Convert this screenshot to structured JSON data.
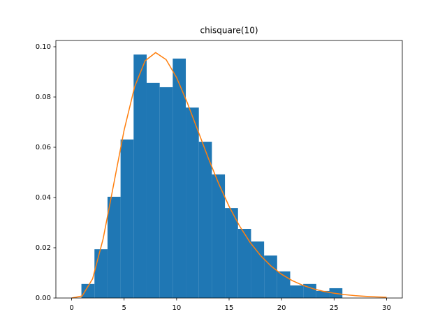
{
  "chart_data": {
    "type": "histogram",
    "title": "chisquare(10)",
    "bins": [
      0.933,
      2.176,
      3.419,
      4.662,
      5.905,
      7.148,
      8.391,
      9.634,
      10.877,
      12.12,
      13.363,
      14.606,
      15.849,
      17.092,
      18.335,
      19.578,
      20.821,
      22.064,
      23.307,
      24.55,
      25.793
    ],
    "values": [
      0.0056,
      0.0194,
      0.0403,
      0.0631,
      0.0969,
      0.0856,
      0.0839,
      0.0953,
      0.0758,
      0.0622,
      0.0492,
      0.0358,
      0.0275,
      0.0225,
      0.0169,
      0.0106,
      0.005,
      0.0056,
      0.0028,
      0.0039
    ],
    "color": "#1f77b4",
    "line": {
      "type": "line",
      "color": "#ff7f0e",
      "x": [
        0,
        1,
        2,
        3,
        4,
        5,
        6,
        7,
        8,
        9,
        10,
        11,
        12,
        13,
        14,
        15,
        16,
        17,
        18,
        19,
        20,
        21,
        22,
        23,
        24,
        25,
        26,
        27,
        28,
        29,
        30
      ],
      "values": [
        0,
        0.00079,
        0.00766,
        0.02353,
        0.04511,
        0.0668,
        0.08402,
        0.09441,
        0.09768,
        0.0949,
        0.08773,
        0.07791,
        0.06693,
        0.05591,
        0.04561,
        0.03646,
        0.02863,
        0.02213,
        0.01687,
        0.0127,
        0.00946,
        0.00697,
        0.00509,
        0.00369,
        0.00265,
        0.0019,
        0.00134,
        0.00095,
        0.00067,
        0.00046,
        0.00032
      ]
    },
    "xlim": [
      -1.5,
      31.5
    ],
    "ylim": [
      0,
      0.1025
    ],
    "xticks": [
      0,
      5,
      10,
      15,
      20,
      25,
      30
    ],
    "yticks": [
      {
        "value": 0,
        "label": "0.00"
      },
      {
        "value": 0.02,
        "label": "0.02"
      },
      {
        "value": 0.04,
        "label": "0.04"
      },
      {
        "value": 0.06,
        "label": "0.06"
      },
      {
        "value": 0.08,
        "label": "0.08"
      },
      {
        "value": 0.1,
        "label": "0.10"
      }
    ]
  }
}
